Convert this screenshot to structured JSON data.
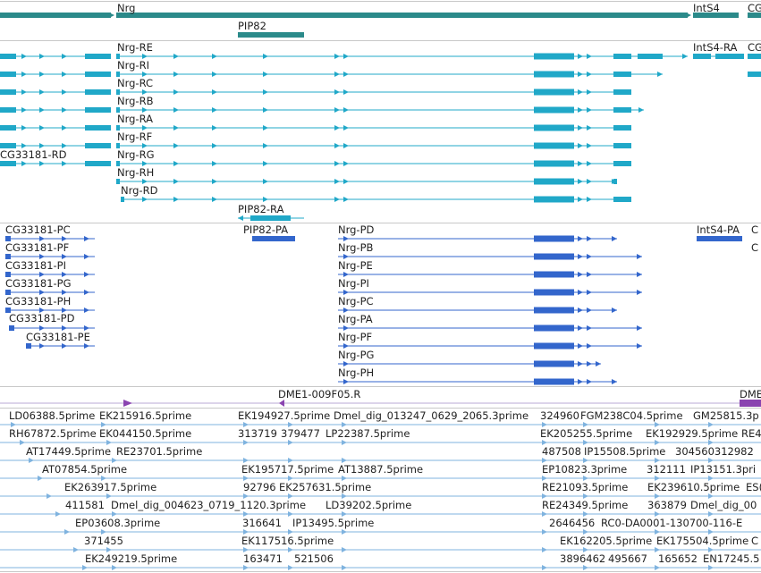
{
  "colors": {
    "gene": "#2b8a8a",
    "transcript": "#20a8c8",
    "protein": "#3366cc",
    "primer": "#8a44b0",
    "est": "#7fb3df"
  },
  "tracks": {
    "genes": {
      "labels": [
        {
          "text": "Nrg",
          "name": "gene-label-nrg"
        },
        {
          "text": "IntS4",
          "name": "gene-label-ints4"
        },
        {
          "text": "CG",
          "name": "gene-label-cg"
        },
        {
          "text": "PIP82",
          "name": "gene-label-pip82"
        }
      ]
    },
    "transcripts": {
      "labels": [
        {
          "text": "Nrg-RE"
        },
        {
          "text": "Nrg-RI"
        },
        {
          "text": "Nrg-RC"
        },
        {
          "text": "Nrg-RB"
        },
        {
          "text": "Nrg-RA"
        },
        {
          "text": "Nrg-RF"
        },
        {
          "text": "Nrg-RG"
        },
        {
          "text": "Nrg-RH"
        },
        {
          "text": "Nrg-RD"
        },
        {
          "text": "CG33181-RD"
        },
        {
          "text": "IntS4-RA"
        },
        {
          "text": "CG"
        },
        {
          "text": "PIP82-RA"
        }
      ]
    },
    "proteins": {
      "labels": [
        {
          "text": "CG33181-PC"
        },
        {
          "text": "CG33181-PF"
        },
        {
          "text": "CG33181-PI"
        },
        {
          "text": "CG33181-PG"
        },
        {
          "text": "CG33181-PH"
        },
        {
          "text": "CG33181-PD"
        },
        {
          "text": "CG33181-PE"
        },
        {
          "text": "PIP82-PA"
        },
        {
          "text": "Nrg-PD"
        },
        {
          "text": "Nrg-PB"
        },
        {
          "text": "Nrg-PE"
        },
        {
          "text": "Nrg-PI"
        },
        {
          "text": "Nrg-PC"
        },
        {
          "text": "Nrg-PA"
        },
        {
          "text": "Nrg-PF"
        },
        {
          "text": "Nrg-PG"
        },
        {
          "text": "Nrg-PH"
        },
        {
          "text": "IntS4-PA"
        },
        {
          "text": "C"
        },
        {
          "text": "C"
        }
      ]
    },
    "primers": {
      "labels": [
        {
          "text": "DME1-009F05.R"
        },
        {
          "text": "DME"
        }
      ]
    },
    "ests": {
      "labels": [
        {
          "text": "LD06388.5prime"
        },
        {
          "text": "EK215916.5prime"
        },
        {
          "text": "EK194927.5prime"
        },
        {
          "text": "Dmel_dig_013247_0629_2065.3prime"
        },
        {
          "text": "324960"
        },
        {
          "text": "FGM238C04.5prime"
        },
        {
          "text": "GM25815.3p"
        },
        {
          "text": "RH67872.5prime"
        },
        {
          "text": "EK044150.5prime"
        },
        {
          "text": "313719"
        },
        {
          "text": "379477"
        },
        {
          "text": "LP22387.5prime"
        },
        {
          "text": "EK205255.5prime"
        },
        {
          "text": "EK192929.5prime"
        },
        {
          "text": "RE4"
        },
        {
          "text": "AT17449.5prime"
        },
        {
          "text": "RE23701.5prime"
        },
        {
          "text": "487508"
        },
        {
          "text": "IP15508.5prime"
        },
        {
          "text": "304560312982"
        },
        {
          "text": "AT07854.5prime"
        },
        {
          "text": "EK195717.5prime"
        },
        {
          "text": "AT13887.5prime"
        },
        {
          "text": "EP10823.3prime"
        },
        {
          "text": "312111"
        },
        {
          "text": "IP13151.3pri"
        },
        {
          "text": "EK263917.5prime"
        },
        {
          "text": "92796"
        },
        {
          "text": "EK257631.5prime"
        },
        {
          "text": "RE21093.5prime"
        },
        {
          "text": "EK239610.5prime"
        },
        {
          "text": "ES("
        },
        {
          "text": "411581"
        },
        {
          "text": "Dmel_dig_004623_0719_1120.3prime"
        },
        {
          "text": "LD39202.5prime"
        },
        {
          "text": "RE24349.5prime"
        },
        {
          "text": "363879"
        },
        {
          "text": "Dmel_dig_00"
        },
        {
          "text": "EP03608.3prime"
        },
        {
          "text": "316641"
        },
        {
          "text": "IP13495.5prime"
        },
        {
          "text": "2646456"
        },
        {
          "text": "RC0-DA0001-130700-116-E"
        },
        {
          "text": "371455"
        },
        {
          "text": "EK117516.5prime"
        },
        {
          "text": "EK162205.5prime"
        },
        {
          "text": "EK175504.5prime"
        },
        {
          "text": "C"
        },
        {
          "text": "EK249219.5prime"
        },
        {
          "text": "163471"
        },
        {
          "text": "521506"
        },
        {
          "text": "3896462"
        },
        {
          "text": "495667"
        },
        {
          "text": "165652"
        },
        {
          "text": "EN17245.5"
        }
      ]
    }
  }
}
